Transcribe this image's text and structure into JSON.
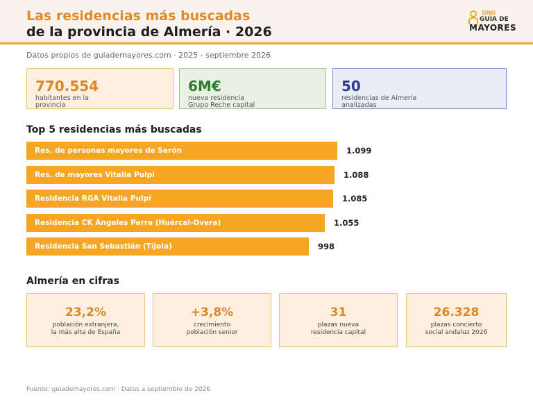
{
  "header": {
    "title_line1": "Las residencias más buscadas",
    "title_line2": "de la provincia de Almería · 2026",
    "logo": {
      "ong": "ONG",
      "guia": "GUÍA DE",
      "mayores": "MAYORES"
    }
  },
  "subline": "Datos propios de guiademayores.com · 2025 - septiembre 2026",
  "kpis": [
    {
      "value": "770.554",
      "label": "habitantes en la provincia"
    },
    {
      "value": "6M€",
      "label": "nueva residencia Grupo Reche capital"
    },
    {
      "value": "50",
      "label": "residencias de Almería analizadas"
    }
  ],
  "top5_title": "Top 5 residencias más buscadas",
  "chart_data": {
    "type": "bar",
    "orientation": "horizontal",
    "title": "Top 5 residencias más buscadas",
    "categories": [
      "Res. de personas mayores de Serón",
      "Res. de mayores Vitalia Pulpí",
      "Residencia RGA Vitalia Pulpí",
      "Residencia CK Ángeles Parra (Huércal-Overa)",
      "Residencia San Sebastián (Tíjola)"
    ],
    "values": [
      1099,
      1088,
      1085,
      1055,
      998
    ],
    "value_labels": [
      "1.099",
      "1.088",
      "1.085",
      "1.055",
      "998"
    ],
    "color": "#f5a623"
  },
  "cifras_title": "Almería en cifras",
  "cifras": [
    {
      "value": "23,2%",
      "line1": "población extranjera,",
      "line2": "la más alta de España"
    },
    {
      "value": "+3,8%",
      "line1": "crecimiento",
      "line2": "población senior"
    },
    {
      "value": "31",
      "line1": "plazas nueva",
      "line2": "residencia capital"
    },
    {
      "value": "26.328",
      "line1": "plazas concierto",
      "line2": "social andaluz 2026"
    }
  ],
  "footer": "Fuente: guiademayores.com · Datos a septiembre de 2026",
  "colors": {
    "accent": "#f0a82a",
    "bar": "#f5a623",
    "green": "#2e7d2e",
    "blue": "#2a3b8f"
  }
}
